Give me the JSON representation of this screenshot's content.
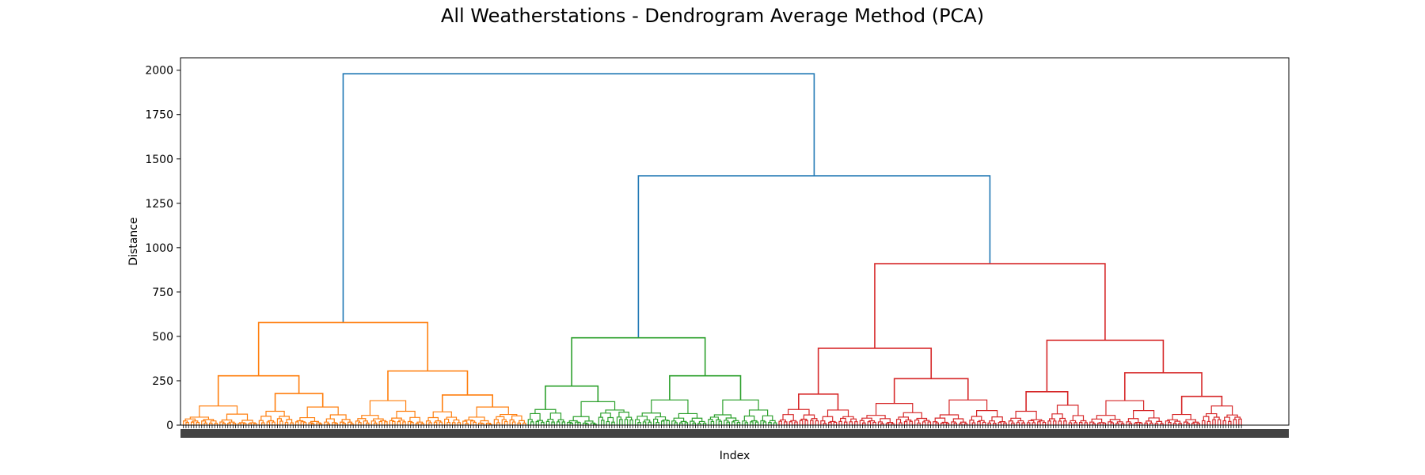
{
  "chart_data": {
    "type": "dendrogram",
    "title": "All Weatherstations - Dendrogram Average Method (PCA)",
    "xlabel": "Index",
    "ylabel": "Distance",
    "ylim": [
      0,
      2070
    ],
    "yticks": [
      0,
      250,
      500,
      750,
      1000,
      1250,
      1500,
      1750,
      2000
    ],
    "grid": false,
    "colors": {
      "root": "#1f77b4",
      "cluster_1": "#ff7f0e",
      "cluster_2": "#2ca02c",
      "cluster_3": "#d62728"
    },
    "merges": [
      {
        "cluster": "root",
        "height": 1980,
        "children": [
          "cluster_1",
          "upper_right"
        ]
      },
      {
        "cluster": "root",
        "height": 1405,
        "children": [
          "cluster_2",
          "cluster_3"
        ]
      },
      {
        "cluster": "cluster_3",
        "height": 910,
        "children": [
          "c3_left",
          "c3_right"
        ]
      },
      {
        "cluster": "cluster_1",
        "height": 578,
        "children": [
          "c1_left",
          "c1_right"
        ]
      },
      {
        "cluster": "cluster_2",
        "height": 492,
        "children": [
          "c2_left",
          "c2_right"
        ]
      },
      {
        "cluster": "cluster_3",
        "height": 478,
        "children": [
          "c3_rl",
          "c3_rr"
        ]
      },
      {
        "cluster": "cluster_3",
        "height": 433,
        "children": [
          "c3_ll",
          "c3_lr"
        ]
      },
      {
        "cluster": "cluster_1",
        "height": 305,
        "children": [
          "c1_rl",
          "c1_rr"
        ]
      },
      {
        "cluster": "cluster_3",
        "height": 295,
        "children": [
          "c3_rrl",
          "c3_rrr"
        ]
      },
      {
        "cluster": "cluster_1",
        "height": 278,
        "children": [
          "c1_ll",
          "c1_lr"
        ]
      },
      {
        "cluster": "cluster_2",
        "height": 278,
        "children": [
          "c2_rl",
          "c2_rr"
        ]
      },
      {
        "cluster": "cluster_3",
        "height": 262,
        "children": [
          "c3_lrl",
          "c3_lrr"
        ]
      },
      {
        "cluster": "cluster_2",
        "height": 220,
        "children": [
          "c2_ll",
          "c2_lr"
        ]
      }
    ]
  }
}
